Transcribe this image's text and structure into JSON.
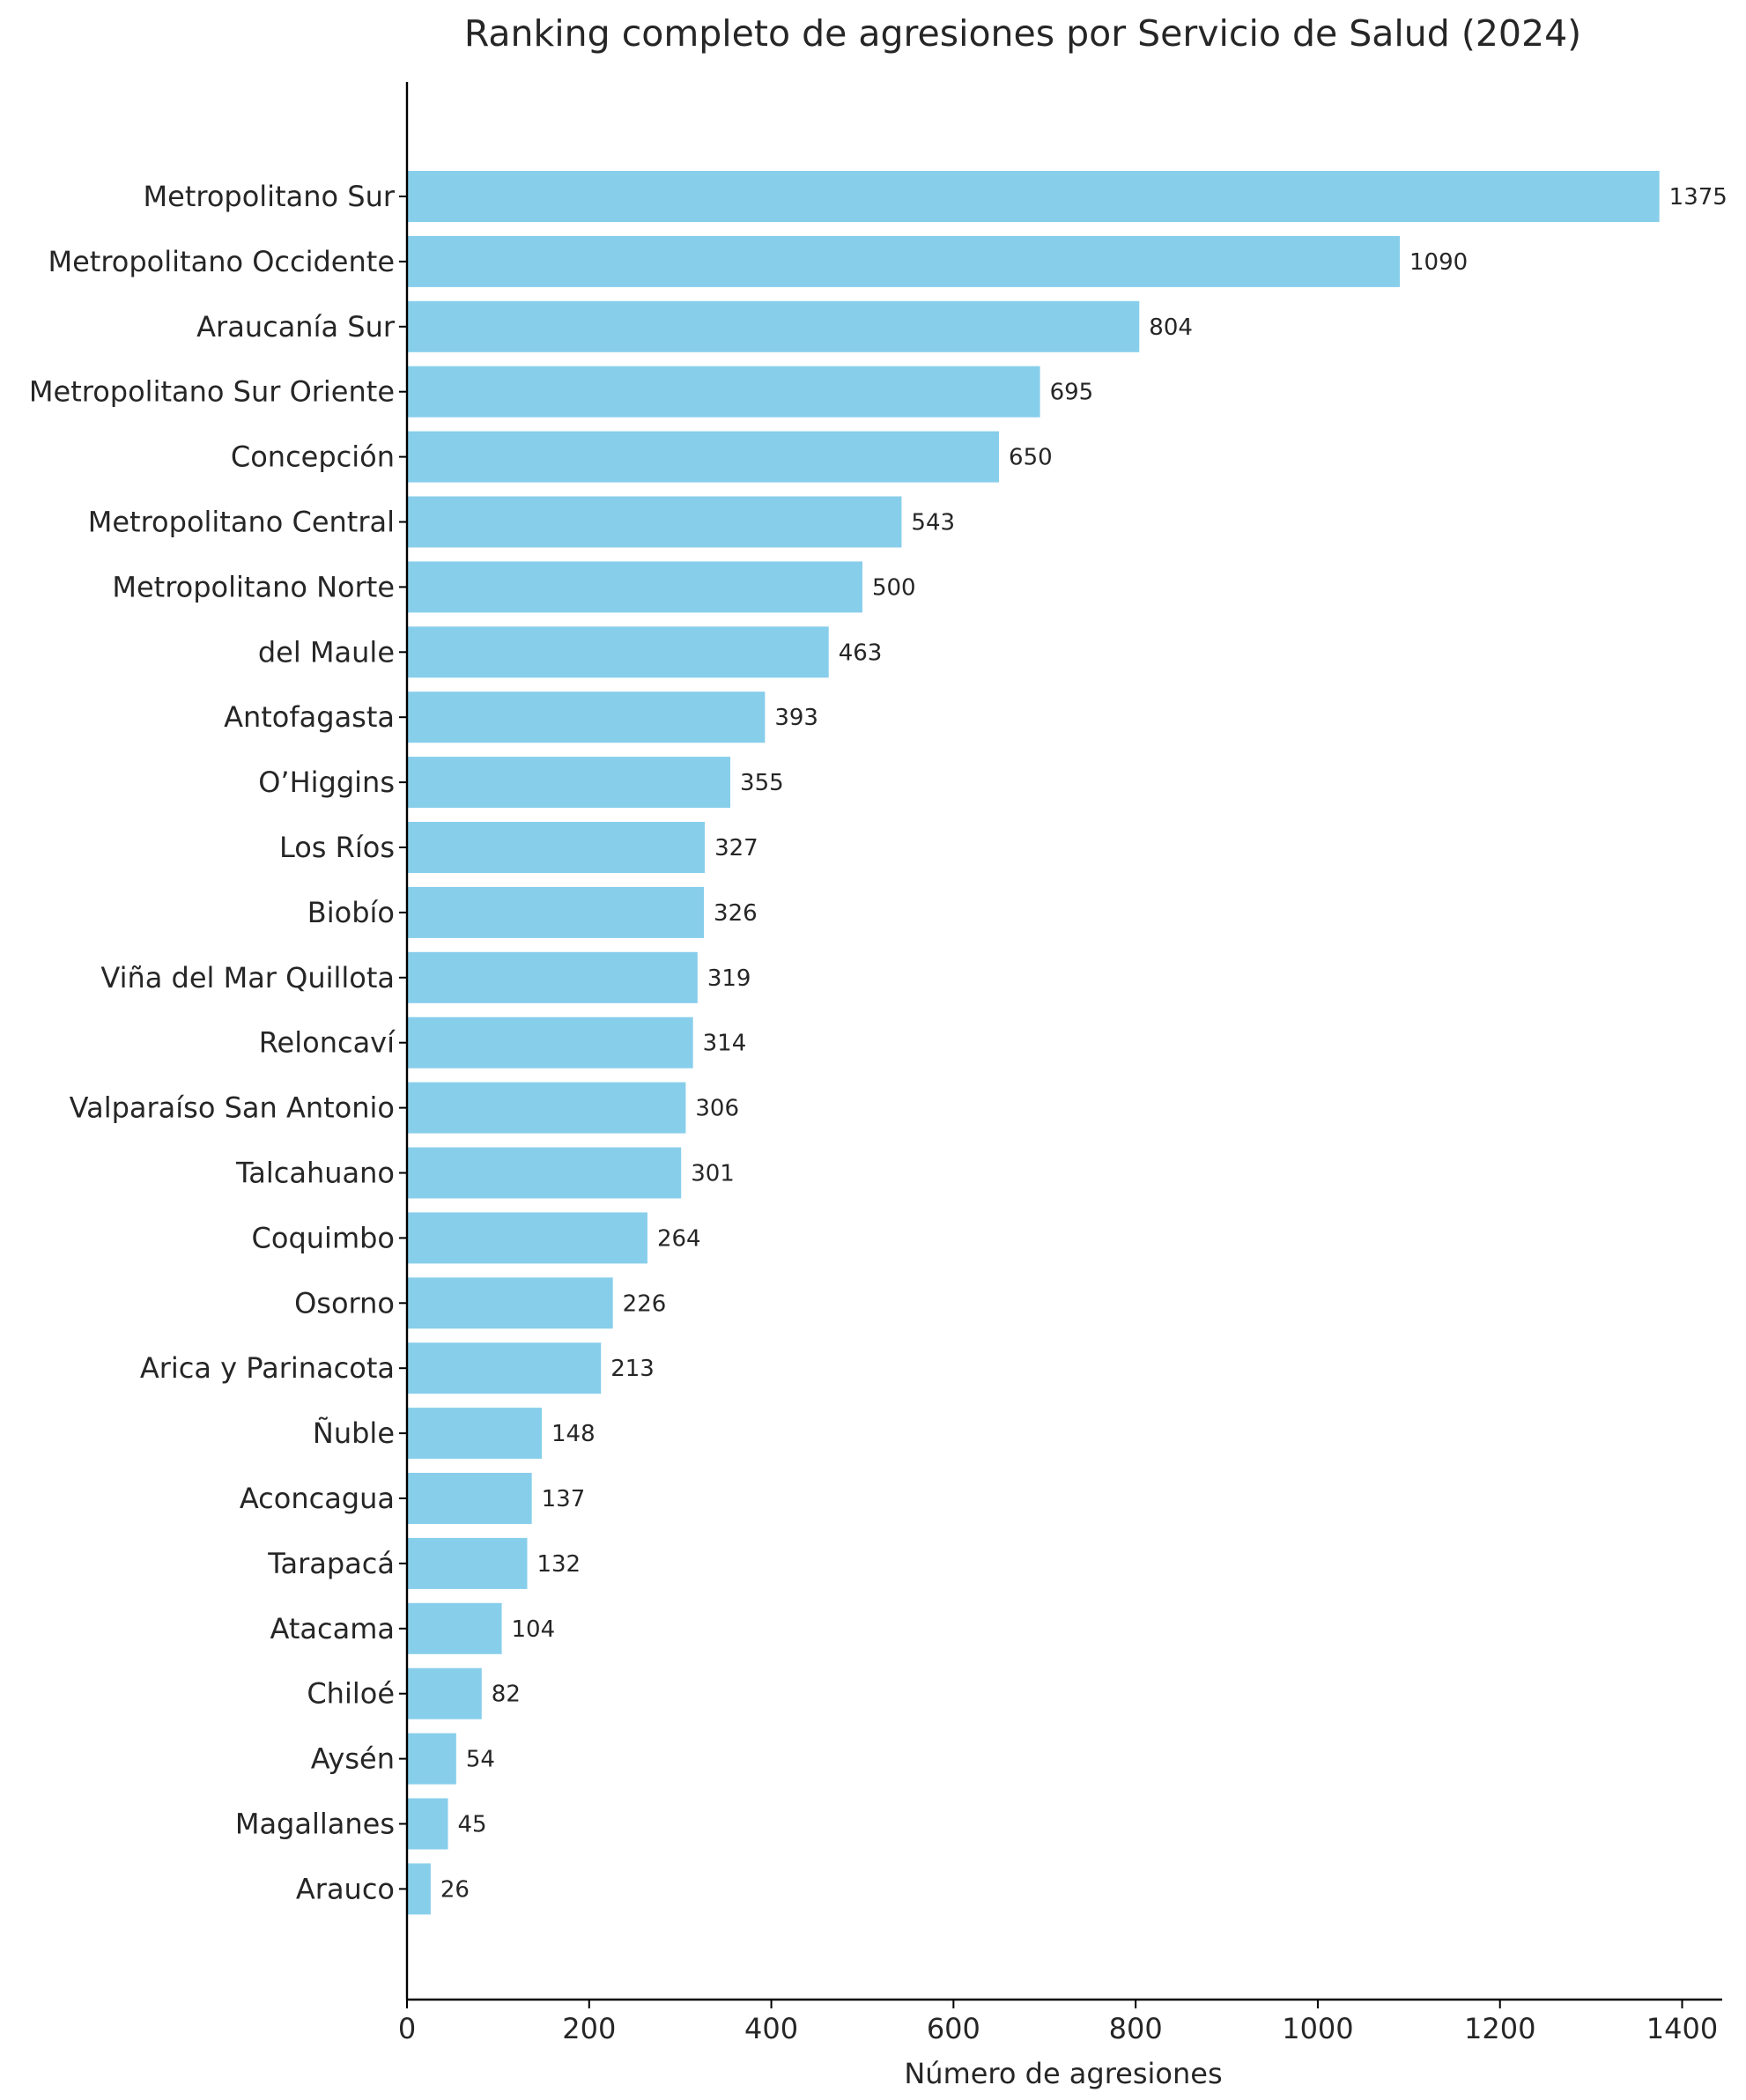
{
  "chart_data": {
    "type": "bar",
    "orientation": "horizontal",
    "title": "Ranking completo de agresiones por Servicio de Salud (2024)",
    "xlabel": "Número de agresiones",
    "ylabel": "",
    "xlim": [
      0,
      1444
    ],
    "xticks": [
      0,
      200,
      400,
      600,
      800,
      1000,
      1200,
      1400
    ],
    "grid": false,
    "legend": "none",
    "bar_color": "#87CEEB",
    "categories": [
      "Metropolitano Sur",
      "Metropolitano Occidente",
      "Araucanía Sur",
      "Metropolitano Sur Oriente",
      "Concepción",
      "Metropolitano Central",
      "Metropolitano Norte",
      "del Maule",
      "Antofagasta",
      "O’Higgins",
      "Los Ríos",
      "Biobío",
      "Viña del Mar Quillota",
      "Reloncaví",
      "Valparaíso San Antonio",
      "Talcahuano",
      "Coquimbo",
      "Osorno",
      "Arica y Parinacota",
      "Ñuble",
      "Aconcagua",
      "Tarapacá",
      "Atacama",
      "Chiloé",
      "Aysén",
      "Magallanes",
      "Arauco"
    ],
    "values": [
      1375,
      1090,
      804,
      695,
      650,
      543,
      500,
      463,
      393,
      355,
      327,
      326,
      319,
      314,
      306,
      301,
      264,
      226,
      213,
      148,
      137,
      132,
      104,
      82,
      54,
      45,
      26
    ]
  }
}
